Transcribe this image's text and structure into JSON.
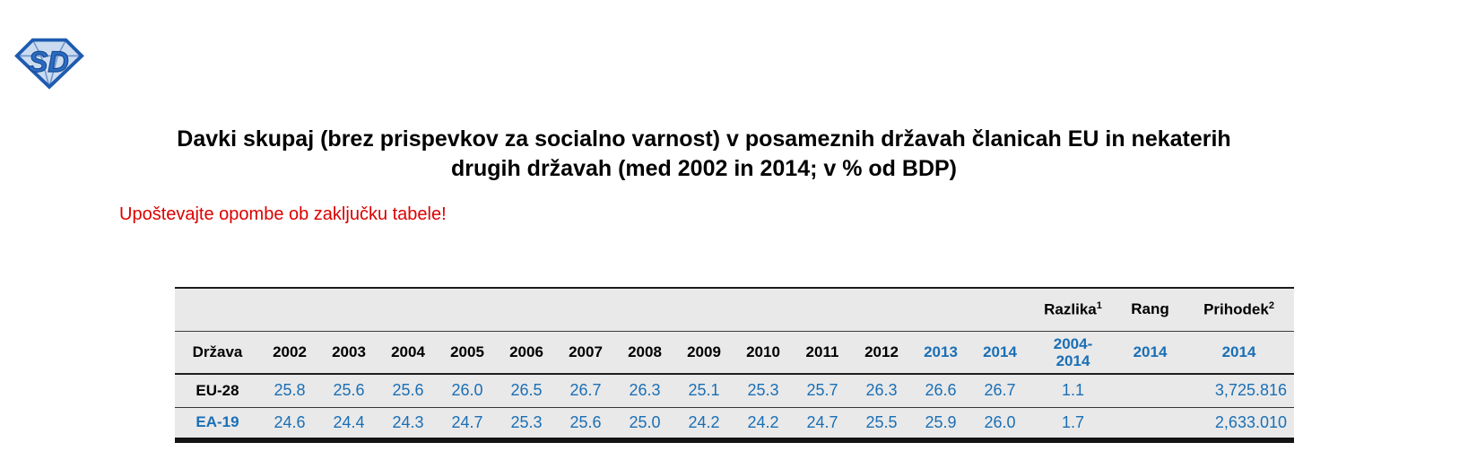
{
  "title": {
    "line1": "Davki skupaj (brez prispevkov za socialno varnost) v posameznih državah članicah EU in nekaterih",
    "line2": "drugih državah (med 2002 in 2014; v % od BDP)"
  },
  "note": "Upoštevajte opombe ob zaključku tabele!",
  "logo": {
    "letters": "SD"
  },
  "colors": {
    "accent_blue": "#1a6fb5",
    "note_red": "#dd0000",
    "row_background": "#e9e9e9",
    "logo_fill": "#ccdcf0",
    "logo_stroke": "#1e5bb0",
    "logo_letter_fill": "#2a6cc4",
    "logo_letter_stroke": "#17498f"
  },
  "table": {
    "group_header": {
      "razlika": {
        "label": "Razlika",
        "sup": "1"
      },
      "rang": {
        "label": "Rang",
        "sup": ""
      },
      "prihodek": {
        "label": "Prihodek",
        "sup": "2"
      }
    },
    "columns": [
      {
        "label": "Država",
        "blue": false
      },
      {
        "label": "2002",
        "blue": false
      },
      {
        "label": "2003",
        "blue": false
      },
      {
        "label": "2004",
        "blue": false
      },
      {
        "label": "2005",
        "blue": false
      },
      {
        "label": "2006",
        "blue": false
      },
      {
        "label": "2007",
        "blue": false
      },
      {
        "label": "2008",
        "blue": false
      },
      {
        "label": "2009",
        "blue": false
      },
      {
        "label": "2010",
        "blue": false
      },
      {
        "label": "2011",
        "blue": false
      },
      {
        "label": "2012",
        "blue": false
      },
      {
        "label": "2013",
        "blue": true
      },
      {
        "label": "2014",
        "blue": true
      },
      {
        "label": "2004-\n2014",
        "blue": true
      },
      {
        "label": "2014",
        "blue": true
      },
      {
        "label": "2014",
        "blue": true
      }
    ],
    "rows": [
      {
        "country": "EU-28",
        "country_blue": false,
        "values": [
          "25.8",
          "25.6",
          "25.6",
          "26.0",
          "26.5",
          "26.7",
          "26.3",
          "25.1",
          "25.3",
          "25.7",
          "26.3",
          "26.6",
          "26.7"
        ],
        "razlika": "1.1",
        "rang": "",
        "prihodek": "3,725.816"
      },
      {
        "country": "EA-19",
        "country_blue": true,
        "values": [
          "24.6",
          "24.4",
          "24.3",
          "24.7",
          "25.3",
          "25.6",
          "25.0",
          "24.2",
          "24.2",
          "24.7",
          "25.5",
          "25.9",
          "26.0"
        ],
        "razlika": "1.7",
        "rang": "",
        "prihodek": "2,633.010"
      }
    ]
  }
}
